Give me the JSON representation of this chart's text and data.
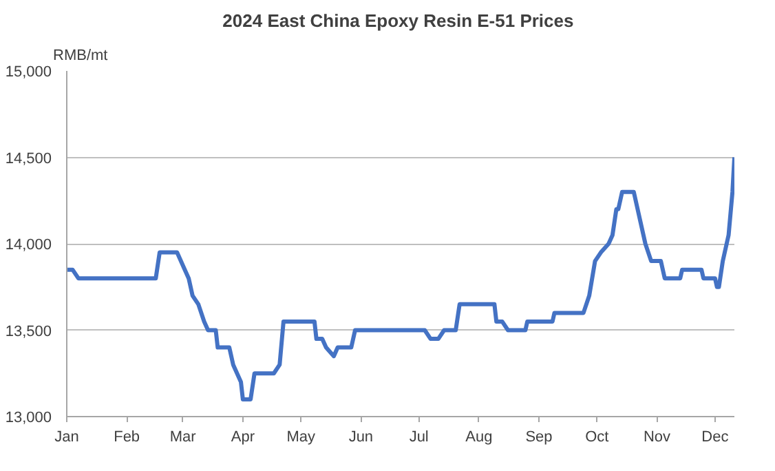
{
  "chart_data": {
    "type": "line",
    "title": "2024  East China Epoxy Resin E-51 Prices",
    "ylabel": "RMB/mt",
    "x": [
      "2024-01-01",
      "2024-01-04",
      "2024-01-07",
      "2024-02-16",
      "2024-02-18",
      "2024-02-27",
      "2024-03-02",
      "2024-03-04",
      "2024-03-06",
      "2024-03-09",
      "2024-03-12",
      "2024-03-14",
      "2024-03-18",
      "2024-03-19",
      "2024-03-25",
      "2024-03-27",
      "2024-03-31",
      "2024-04-01",
      "2024-04-05",
      "2024-04-07",
      "2024-04-17",
      "2024-04-20",
      "2024-04-22",
      "2024-05-08",
      "2024-05-09",
      "2024-05-12",
      "2024-05-14",
      "2024-05-18",
      "2024-05-20",
      "2024-05-27",
      "2024-05-29",
      "2024-07-04",
      "2024-07-07",
      "2024-07-11",
      "2024-07-14",
      "2024-07-20",
      "2024-07-22",
      "2024-08-09",
      "2024-08-10",
      "2024-08-13",
      "2024-08-16",
      "2024-08-25",
      "2024-08-26",
      "2024-09-08",
      "2024-09-09",
      "2024-09-24",
      "2024-09-27",
      "2024-09-30",
      "2024-10-03",
      "2024-10-07",
      "2024-10-09",
      "2024-10-11",
      "2024-10-12",
      "2024-10-14",
      "2024-10-20",
      "2024-10-22",
      "2024-10-26",
      "2024-10-29",
      "2024-11-03",
      "2024-11-05",
      "2024-11-13",
      "2024-11-14",
      "2024-11-24",
      "2024-11-25",
      "2024-12-01",
      "2024-12-02",
      "2024-12-03",
      "2024-12-05",
      "2024-12-08",
      "2024-12-10",
      "2024-12-11"
    ],
    "series": [
      {
        "color": "#4472c4",
        "values": [
          13850,
          13850,
          13800,
          13800,
          13950,
          13950,
          13850,
          13800,
          13700,
          13650,
          13550,
          13500,
          13500,
          13400,
          13400,
          13300,
          13200,
          13100,
          13100,
          13250,
          13250,
          13300,
          13550,
          13550,
          13450,
          13450,
          13400,
          13350,
          13400,
          13400,
          13500,
          13500,
          13450,
          13450,
          13500,
          13500,
          13650,
          13650,
          13550,
          13550,
          13500,
          13500,
          13550,
          13550,
          13600,
          13600,
          13700,
          13900,
          13950,
          14000,
          14050,
          14200,
          14200,
          14300,
          14300,
          14200,
          14000,
          13900,
          13900,
          13800,
          13800,
          13850,
          13850,
          13800,
          13800,
          13750,
          13750,
          13900,
          14050,
          14300,
          14500
        ]
      }
    ],
    "xlim": [
      "2024-01-01",
      "2024-12-11"
    ],
    "xticks": [
      {
        "value": "2024-01-01",
        "label": "Jan"
      },
      {
        "value": "2024-02-01",
        "label": "Feb"
      },
      {
        "value": "2024-03-01",
        "label": "Mar"
      },
      {
        "value": "2024-04-01",
        "label": "Apr"
      },
      {
        "value": "2024-05-01",
        "label": "May"
      },
      {
        "value": "2024-06-01",
        "label": "Jun"
      },
      {
        "value": "2024-07-01",
        "label": "Jul"
      },
      {
        "value": "2024-08-01",
        "label": "Aug"
      },
      {
        "value": "2024-09-01",
        "label": "Sep"
      },
      {
        "value": "2024-10-01",
        "label": "Oct"
      },
      {
        "value": "2024-11-01",
        "label": "Nov"
      },
      {
        "value": "2024-12-01",
        "label": "Dec"
      }
    ],
    "ylim": [
      13000,
      15000
    ],
    "yticks": [
      {
        "value": 13000,
        "label": "13,000"
      },
      {
        "value": 13500,
        "label": "13,500"
      },
      {
        "value": 14000,
        "label": "14,000"
      },
      {
        "value": 14500,
        "label": "14,500"
      },
      {
        "value": 15000,
        "label": "15,000"
      }
    ],
    "grid": "y",
    "marker": "none",
    "line_style": "solid"
  }
}
